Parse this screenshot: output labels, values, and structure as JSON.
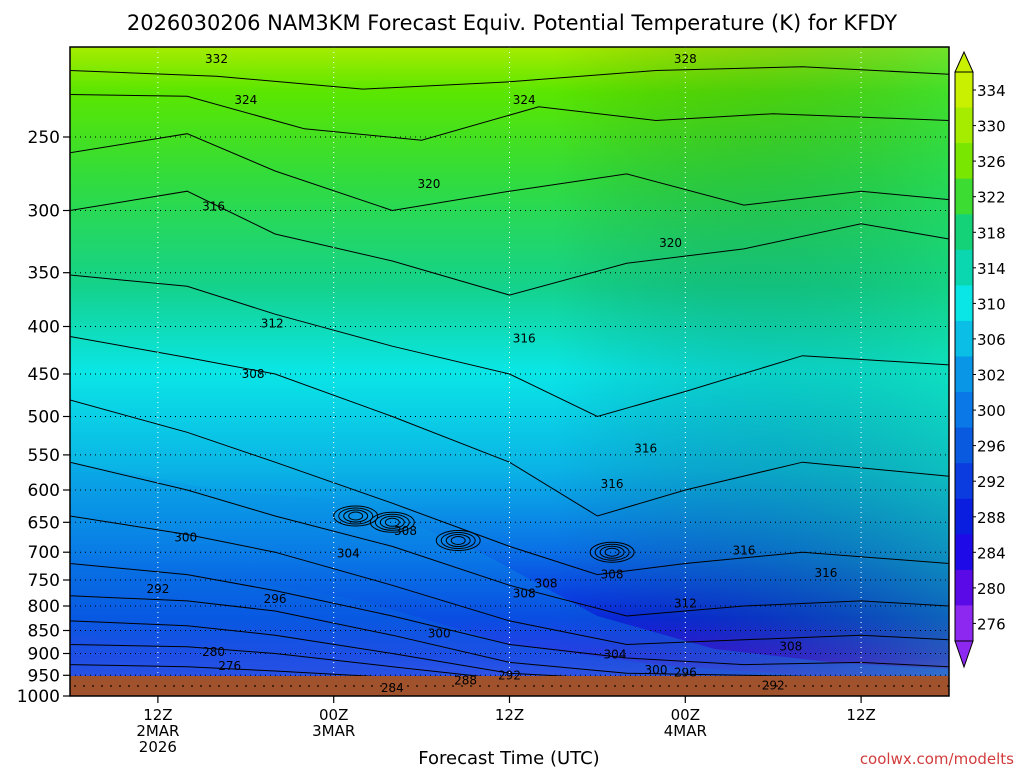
{
  "chart_data": {
    "type": "heatmap",
    "title": "2026030206 NAM3KM Forecast Equiv. Potential Temperature (K) for KFDY",
    "xlabel": "Forecast Time (UTC)",
    "ylabel": "",
    "credit": "coolwx.com/modelts",
    "y_scale": "log",
    "y_inverted": true,
    "y_ticks": [
      250,
      300,
      350,
      400,
      450,
      500,
      550,
      600,
      650,
      700,
      750,
      800,
      850,
      900,
      950,
      1000
    ],
    "ylim": [
      1000,
      200
    ],
    "x_ticks": [
      {
        "hour": 6,
        "lines": [
          "12Z",
          "2MAR",
          "2026"
        ]
      },
      {
        "hour": 18,
        "lines": [
          "00Z",
          "3MAR"
        ]
      },
      {
        "hour": 30,
        "lines": [
          "12Z"
        ]
      },
      {
        "hour": 42,
        "lines": [
          "00Z",
          "4MAR"
        ]
      },
      {
        "hour": 54,
        "lines": [
          "12Z"
        ]
      }
    ],
    "xlim": [
      0,
      60
    ],
    "grid": true,
    "colorbar": {
      "labels": [
        334,
        330,
        326,
        322,
        318,
        314,
        310,
        306,
        302,
        300,
        296,
        292,
        288,
        284,
        280,
        276
      ],
      "colors": [
        "#c8f000",
        "#a6ec00",
        "#78e600",
        "#3cdc32",
        "#14d278",
        "#0ad6b0",
        "#0ae6e6",
        "#0abee6",
        "#0a96e6",
        "#0a78e6",
        "#0a5ae0",
        "#0a3ce0",
        "#0a1ee0",
        "#1e0ae6",
        "#5a0ae6",
        "#8c28f0"
      ]
    },
    "ground_color": "#a0522d",
    "contour_labels": [
      {
        "value": "332",
        "t": 10.0,
        "p": 206
      },
      {
        "value": "328",
        "t": 42.0,
        "p": 206
      },
      {
        "value": "324",
        "t": 12.0,
        "p": 228
      },
      {
        "value": "324",
        "t": 31.0,
        "p": 228
      },
      {
        "value": "320",
        "t": 24.5,
        "p": 281
      },
      {
        "value": "320",
        "t": 41.0,
        "p": 325
      },
      {
        "value": "316",
        "t": 9.8,
        "p": 297
      },
      {
        "value": "316",
        "t": 31.0,
        "p": 412
      },
      {
        "value": "316",
        "t": 39.3,
        "p": 541
      },
      {
        "value": "316",
        "t": 37.0,
        "p": 591
      },
      {
        "value": "316",
        "t": 46.0,
        "p": 697
      },
      {
        "value": "316",
        "t": 51.6,
        "p": 737
      },
      {
        "value": "312",
        "t": 13.8,
        "p": 397
      },
      {
        "value": "312",
        "t": 42.0,
        "p": 795
      },
      {
        "value": "308",
        "t": 12.5,
        "p": 450
      },
      {
        "value": "308",
        "t": 22.9,
        "p": 664
      },
      {
        "value": "308",
        "t": 37.0,
        "p": 740
      },
      {
        "value": "308",
        "t": 31.0,
        "p": 776
      },
      {
        "value": "308",
        "t": 32.5,
        "p": 757
      },
      {
        "value": "308",
        "t": 49.2,
        "p": 885
      },
      {
        "value": "304",
        "t": 19.0,
        "p": 702
      },
      {
        "value": "304",
        "t": 37.2,
        "p": 902
      },
      {
        "value": "300",
        "t": 7.9,
        "p": 675
      },
      {
        "value": "300",
        "t": 25.2,
        "p": 856
      },
      {
        "value": "300",
        "t": 40.0,
        "p": 937
      },
      {
        "value": "296",
        "t": 14.0,
        "p": 786
      },
      {
        "value": "296",
        "t": 42.0,
        "p": 943
      },
      {
        "value": "292",
        "t": 6.0,
        "p": 767
      },
      {
        "value": "292",
        "t": 30.0,
        "p": 950
      },
      {
        "value": "292",
        "t": 48.0,
        "p": 974
      },
      {
        "value": "288",
        "t": 27.0,
        "p": 962
      },
      {
        "value": "284",
        "t": 22.0,
        "p": 980
      },
      {
        "value": "280",
        "t": 9.8,
        "p": 897
      },
      {
        "value": "276",
        "t": 10.9,
        "p": 928
      }
    ]
  }
}
